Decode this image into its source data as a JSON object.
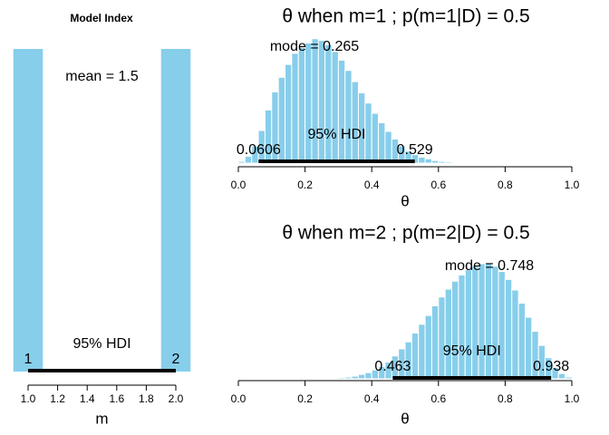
{
  "chart_data": [
    {
      "type": "bar",
      "title": "Model Index",
      "x_label": "m",
      "x": [
        1,
        2
      ],
      "values": [
        0.5,
        0.5
      ],
      "color": "#87ceeb",
      "xlim": [
        1.0,
        2.0
      ],
      "xticks": [
        {
          "value": 1.0,
          "label": "1.0"
        },
        1.2,
        1.4,
        1.6,
        1.8,
        {
          "value": 2.0,
          "label": "2.0"
        }
      ],
      "ylim": [
        0,
        0.5
      ],
      "mean_label": "mean = 1.5",
      "hdi_label": "95% HDI",
      "hdi": [
        1,
        2
      ]
    },
    {
      "type": "histogram",
      "title": "θ when m=1 ; p(m=1|D) = 0.5",
      "x_label": "θ",
      "color": "#87ceeb",
      "bins": [
        0.0,
        0.02,
        0.04,
        0.06,
        0.08,
        0.1,
        0.12,
        0.14,
        0.16,
        0.18,
        0.2,
        0.22,
        0.24,
        0.26,
        0.28,
        0.3,
        0.32,
        0.34,
        0.36,
        0.38,
        0.4,
        0.42,
        0.44,
        0.46,
        0.48,
        0.5,
        0.52,
        0.54,
        0.56,
        0.58,
        0.6,
        0.62,
        0.64,
        0.66,
        0.68,
        0.7
      ],
      "counts": [
        2,
        8,
        20,
        38,
        62,
        83,
        100,
        115,
        128,
        135,
        140,
        145,
        143,
        138,
        130,
        120,
        108,
        95,
        82,
        70,
        58,
        47,
        37,
        28,
        20,
        14,
        10,
        7,
        5,
        3,
        2,
        1.5,
        1,
        0.5,
        0.5
      ],
      "xlim": [
        0,
        1
      ],
      "ylim": [
        0,
        150
      ],
      "xticks": [
        {
          "value": 0,
          "label": "0.0"
        },
        0.2,
        0.4,
        0.6,
        0.8,
        {
          "value": 1,
          "label": "1.0"
        }
      ],
      "mode_label": "mode = 0.265",
      "hdi_label": "95% HDI",
      "hdi": [
        0.0606,
        0.529
      ]
    },
    {
      "type": "histogram",
      "title": "θ when m=2 ; p(m=2|D) = 0.5",
      "x_label": "θ",
      "color": "#87ceeb",
      "bins": [
        0.26,
        0.28,
        0.3,
        0.32,
        0.34,
        0.36,
        0.38,
        0.4,
        0.42,
        0.44,
        0.46,
        0.48,
        0.5,
        0.52,
        0.54,
        0.56,
        0.58,
        0.6,
        0.62,
        0.64,
        0.66,
        0.68,
        0.7,
        0.72,
        0.74,
        0.76,
        0.78,
        0.8,
        0.82,
        0.84,
        0.86,
        0.88,
        0.9,
        0.92,
        0.94,
        0.96,
        0.98,
        1.0
      ],
      "counts": [
        0.5,
        1,
        1.5,
        2,
        3,
        5,
        7,
        10,
        14,
        19,
        26,
        34,
        42,
        52,
        62,
        72,
        83,
        93,
        102,
        111,
        118,
        124,
        128,
        131,
        131,
        128,
        122,
        113,
        101,
        86,
        70,
        54,
        38,
        24,
        13,
        6,
        2
      ],
      "xlim": [
        0,
        1
      ],
      "ylim": [
        0,
        135
      ],
      "xticks": [
        {
          "value": 0,
          "label": "0.0"
        },
        0.2,
        0.4,
        0.6,
        0.8,
        {
          "value": 1,
          "label": "1.0"
        }
      ],
      "mode_label": "mode = 0.748",
      "hdi_label": "95% HDI",
      "hdi": [
        0.463,
        0.938
      ]
    }
  ]
}
